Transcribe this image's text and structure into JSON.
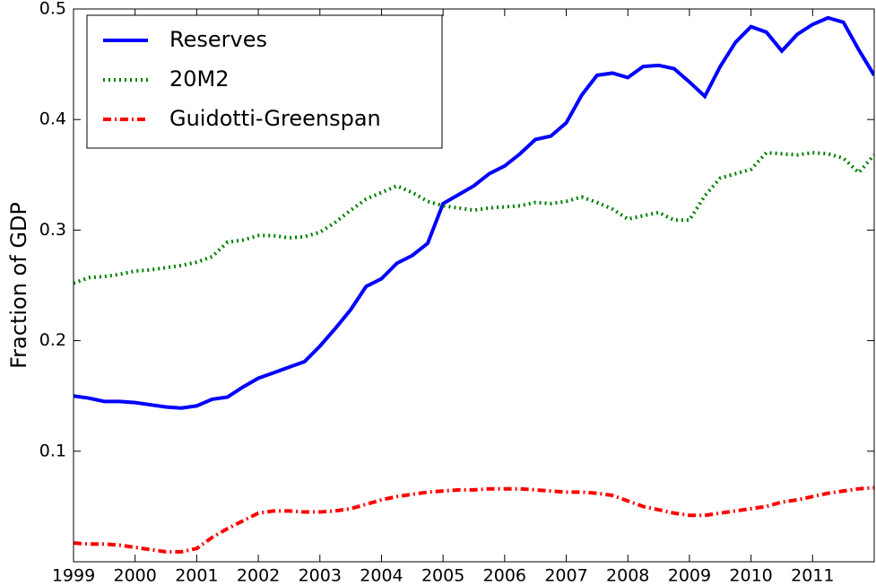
{
  "chart_data": {
    "type": "line",
    "ylabel": "Fraction of GDP",
    "x": [
      1999,
      1999.25,
      1999.5,
      1999.75,
      2000,
      2000.25,
      2000.5,
      2000.75,
      2001,
      2001.25,
      2001.5,
      2001.75,
      2002,
      2002.25,
      2002.5,
      2002.75,
      2003,
      2003.25,
      2003.5,
      2003.75,
      2004,
      2004.25,
      2004.5,
      2004.75,
      2005,
      2005.25,
      2005.5,
      2005.75,
      2006,
      2006.25,
      2006.5,
      2006.75,
      2007,
      2007.25,
      2007.5,
      2007.75,
      2008,
      2008.25,
      2008.5,
      2008.75,
      2009,
      2009.25,
      2009.5,
      2009.75,
      2010,
      2010.25,
      2010.5,
      2010.75,
      2011,
      2011.25,
      2011.5,
      2011.75,
      2012
    ],
    "series": [
      {
        "name": "Reserves",
        "color": "#0000ff",
        "style": "solid",
        "values": [
          0.15,
          0.148,
          0.145,
          0.145,
          0.144,
          0.142,
          0.14,
          0.139,
          0.141,
          0.147,
          0.149,
          0.158,
          0.166,
          0.171,
          0.176,
          0.181,
          0.195,
          0.211,
          0.228,
          0.249,
          0.256,
          0.27,
          0.277,
          0.288,
          0.324,
          0.332,
          0.34,
          0.351,
          0.358,
          0.369,
          0.382,
          0.385,
          0.397,
          0.422,
          0.44,
          0.442,
          0.438,
          0.448,
          0.449,
          0.446,
          0.434,
          0.421,
          0.448,
          0.47,
          0.484,
          0.479,
          0.462,
          0.477,
          0.486,
          0.492,
          0.488,
          0.463,
          0.44
        ]
      },
      {
        "name": "20M2",
        "color": "#008000",
        "style": "dotted",
        "values": [
          0.252,
          0.257,
          0.258,
          0.26,
          0.263,
          0.264,
          0.266,
          0.268,
          0.271,
          0.276,
          0.289,
          0.291,
          0.295,
          0.295,
          0.293,
          0.294,
          0.298,
          0.307,
          0.318,
          0.328,
          0.334,
          0.34,
          0.334,
          0.326,
          0.322,
          0.32,
          0.318,
          0.32,
          0.321,
          0.322,
          0.325,
          0.324,
          0.326,
          0.33,
          0.325,
          0.319,
          0.31,
          0.313,
          0.316,
          0.309,
          0.309,
          0.331,
          0.347,
          0.351,
          0.355,
          0.37,
          0.369,
          0.368,
          0.37,
          0.369,
          0.365,
          0.352,
          0.368
        ]
      },
      {
        "name": "Guidotti-Greenspan",
        "color": "#ff0000",
        "style": "dashdot",
        "values": [
          0.017,
          0.016,
          0.016,
          0.015,
          0.013,
          0.011,
          0.009,
          0.009,
          0.012,
          0.022,
          0.03,
          0.037,
          0.044,
          0.046,
          0.046,
          0.045,
          0.045,
          0.046,
          0.048,
          0.052,
          0.056,
          0.059,
          0.061,
          0.063,
          0.064,
          0.065,
          0.065,
          0.066,
          0.066,
          0.066,
          0.065,
          0.064,
          0.063,
          0.063,
          0.062,
          0.06,
          0.055,
          0.05,
          0.047,
          0.044,
          0.042,
          0.042,
          0.044,
          0.046,
          0.048,
          0.05,
          0.054,
          0.056,
          0.059,
          0.062,
          0.064,
          0.066,
          0.067
        ]
      }
    ],
    "xlim": [
      1999,
      2012
    ],
    "xticks": [
      1999,
      2000,
      2001,
      2002,
      2003,
      2004,
      2005,
      2006,
      2007,
      2008,
      2009,
      2010,
      2011
    ],
    "ylim": [
      0,
      0.5
    ],
    "yticks": [
      0.1,
      0.2,
      0.3,
      0.4,
      0.5
    ],
    "grid": false,
    "legend": "upper left"
  }
}
